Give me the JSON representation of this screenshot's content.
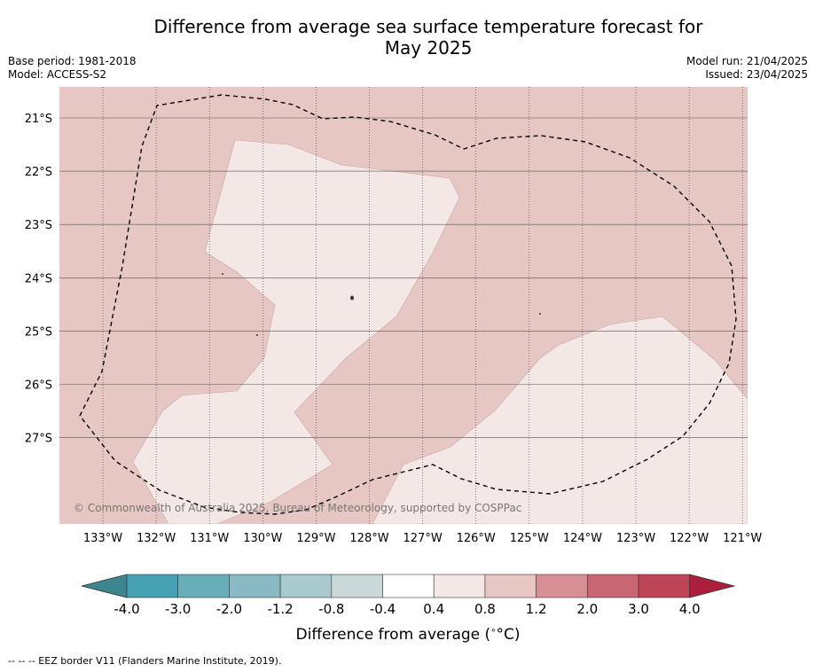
{
  "title_line1": "Difference from average sea surface temperature forecast for",
  "title_line2": "May 2025",
  "meta": {
    "base_period": "Base period: 1981-2018",
    "model": "Model: ACCESS-S2",
    "model_run": "Model run: 21/04/2025",
    "issued": "Issued: 23/04/2025"
  },
  "map": {
    "lon_ticks": [
      "133°W",
      "132°W",
      "131°W",
      "130°W",
      "129°W",
      "128°W",
      "127°W",
      "126°W",
      "125°W",
      "124°W",
      "123°W",
      "122°W",
      "121°W"
    ],
    "lat_ticks": [
      "21°S",
      "22°S",
      "23°S",
      "24°S",
      "25°S",
      "26°S",
      "27°S"
    ],
    "attribution": "© Commonwealth of Australia 2025, Bureau of Meteorology, supported by COSPPac",
    "colors": {
      "band_0_8_1_2": "#e6c7c3",
      "band_0_4_0_8": "#f4e8e6"
    }
  },
  "colorbar": {
    "labels": [
      "-4.0",
      "-3.0",
      "-2.0",
      "-1.2",
      "-0.8",
      "-0.4",
      "0.4",
      "0.8",
      "1.2",
      "2.0",
      "3.0",
      "4.0"
    ],
    "colors": [
      "#3d8690",
      "#45a0b1",
      "#6aaebb",
      "#89b9c3",
      "#a8c9cd",
      "#cbd8da",
      "#ffffff",
      "#f4e8e6",
      "#e6c7c3",
      "#d78f96",
      "#c86673",
      "#be4558",
      "#ab1e3c"
    ],
    "label": "Difference from average (",
    "unit": "°C",
    "label_end": ")"
  },
  "footer": "--  --  -- EEZ border V11 (Flanders Marine Institute, 2019)."
}
